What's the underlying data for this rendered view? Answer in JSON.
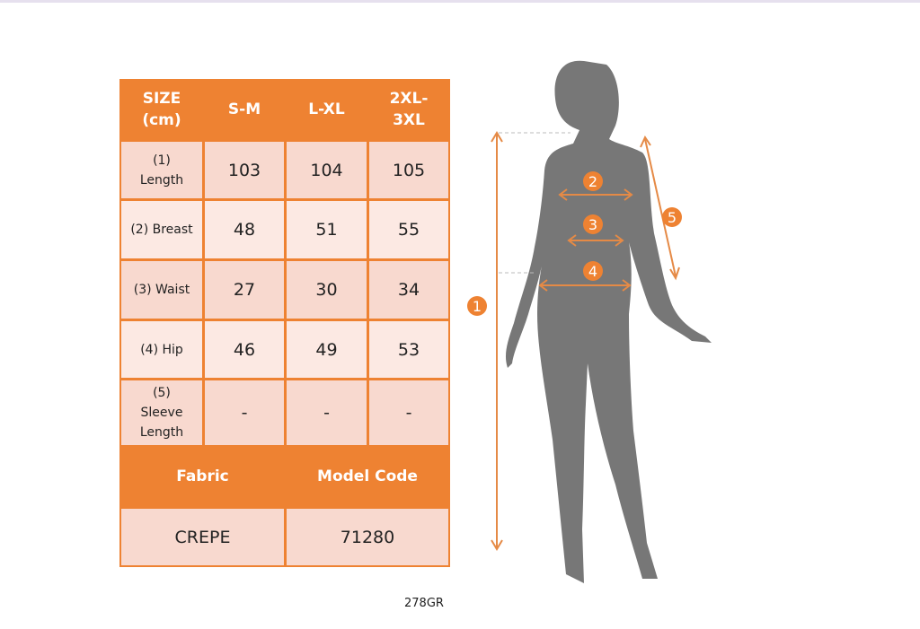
{
  "table": {
    "headers": [
      "SIZE\n(cm)",
      "S-M",
      "L-XL",
      "2XL-\n3XL"
    ],
    "rows": [
      {
        "label": "(1)\nLength",
        "values": [
          "103",
          "104",
          "105"
        ]
      },
      {
        "label": "(2) Breast",
        "values": [
          "48",
          "51",
          "55"
        ]
      },
      {
        "label": "(3) Waist",
        "values": [
          "27",
          "30",
          "34"
        ]
      },
      {
        "label": "(4) Hip",
        "values": [
          "46",
          "49",
          "53"
        ]
      },
      {
        "label": "(5)\nSleeve\nLength",
        "values": [
          "-",
          "-",
          "-"
        ]
      }
    ],
    "footer_headers": [
      "Fabric",
      "Model Code"
    ],
    "footer_values": [
      "CREPE",
      "71280"
    ]
  },
  "figure": {
    "markers": [
      "1",
      "2",
      "3",
      "4",
      "5"
    ]
  },
  "caption": "278GR",
  "colors": {
    "accent": "#ee8232",
    "cell_dark": "#f8d9cf",
    "cell_light": "#fce9e3",
    "silhouette": "#777777"
  }
}
